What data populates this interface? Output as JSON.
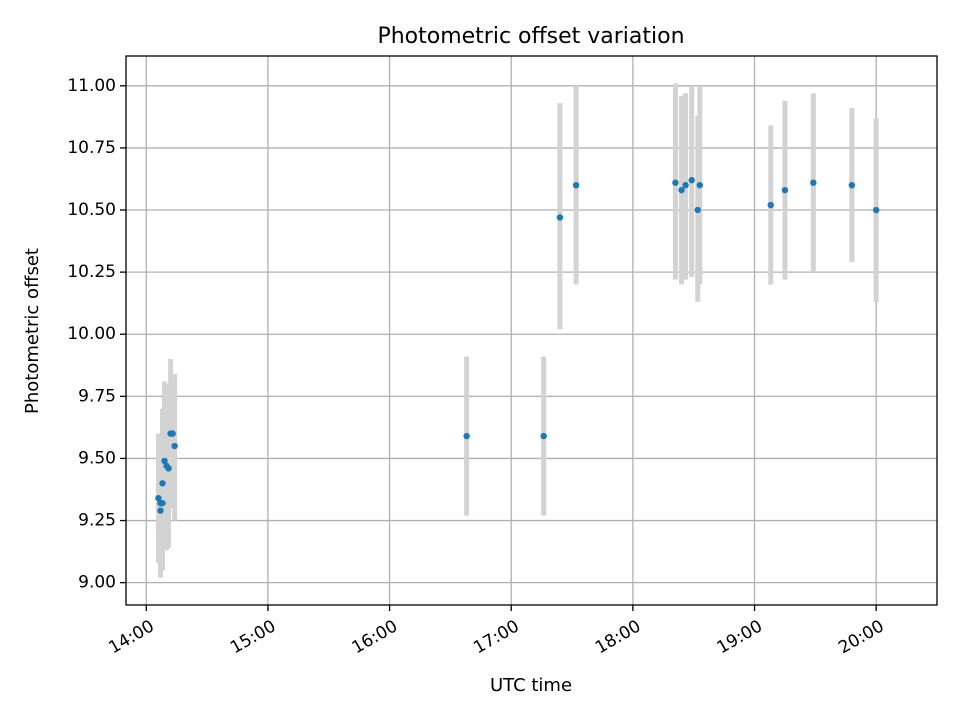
{
  "chart_data": {
    "type": "scatter",
    "title": "Photometric offset variation",
    "xlabel": "UTC time",
    "ylabel": "Photometric offset",
    "x_ticks": [
      "14:00",
      "15:00",
      "16:00",
      "17:00",
      "18:00",
      "19:00",
      "20:00"
    ],
    "y_ticks": [
      "9.00",
      "9.25",
      "9.50",
      "9.75",
      "10.00",
      "10.25",
      "10.50",
      "10.75",
      "11.00"
    ],
    "xlim": [
      "13:50",
      "20:30"
    ],
    "ylim": [
      8.91,
      11.12
    ],
    "grid": true,
    "marker_color": "#1f77b4",
    "errorbar_color": "#d3d3d3",
    "points": [
      {
        "x": "14:06",
        "y": 9.34,
        "ylow": 9.08,
        "yhigh": 9.6
      },
      {
        "x": "14:07",
        "y": 9.29,
        "ylow": 9.02,
        "yhigh": 9.56
      },
      {
        "x": "14:07",
        "y": 9.32,
        "ylow": 9.04,
        "yhigh": 9.59
      },
      {
        "x": "14:08",
        "y": 9.32,
        "ylow": 9.05,
        "yhigh": 9.6
      },
      {
        "x": "14:08",
        "y": 9.4,
        "ylow": 9.1,
        "yhigh": 9.7
      },
      {
        "x": "14:09",
        "y": 9.49,
        "ylow": 9.17,
        "yhigh": 9.81
      },
      {
        "x": "14:10",
        "y": 9.47,
        "ylow": 9.13,
        "yhigh": 9.8
      },
      {
        "x": "14:11",
        "y": 9.46,
        "ylow": 9.14,
        "yhigh": 9.78
      },
      {
        "x": "14:12",
        "y": 9.6,
        "ylow": 9.3,
        "yhigh": 9.9
      },
      {
        "x": "14:13",
        "y": 9.6,
        "ylow": 9.35,
        "yhigh": 9.84
      },
      {
        "x": "14:14",
        "y": 9.55,
        "ylow": 9.25,
        "yhigh": 9.84
      },
      {
        "x": "16:38",
        "y": 9.59,
        "ylow": 9.27,
        "yhigh": 9.91
      },
      {
        "x": "17:16",
        "y": 9.59,
        "ylow": 9.27,
        "yhigh": 9.91
      },
      {
        "x": "17:24",
        "y": 10.47,
        "ylow": 10.02,
        "yhigh": 10.93
      },
      {
        "x": "17:32",
        "y": 10.6,
        "ylow": 10.2,
        "yhigh": 11.0
      },
      {
        "x": "18:21",
        "y": 10.61,
        "ylow": 10.22,
        "yhigh": 11.01
      },
      {
        "x": "18:24",
        "y": 10.58,
        "ylow": 10.2,
        "yhigh": 10.96
      },
      {
        "x": "18:26",
        "y": 10.6,
        "ylow": 10.22,
        "yhigh": 10.97
      },
      {
        "x": "18:29",
        "y": 10.62,
        "ylow": 10.23,
        "yhigh": 11.0
      },
      {
        "x": "18:32",
        "y": 10.5,
        "ylow": 10.13,
        "yhigh": 10.88
      },
      {
        "x": "18:33",
        "y": 10.6,
        "ylow": 10.2,
        "yhigh": 11.0
      },
      {
        "x": "19:08",
        "y": 10.52,
        "ylow": 10.2,
        "yhigh": 10.84
      },
      {
        "x": "19:15",
        "y": 10.58,
        "ylow": 10.22,
        "yhigh": 10.94
      },
      {
        "x": "19:29",
        "y": 10.61,
        "ylow": 10.25,
        "yhigh": 10.97
      },
      {
        "x": "19:48",
        "y": 10.6,
        "ylow": 10.29,
        "yhigh": 10.91
      },
      {
        "x": "20:00",
        "y": 10.5,
        "ylow": 10.13,
        "yhigh": 10.87
      }
    ]
  }
}
